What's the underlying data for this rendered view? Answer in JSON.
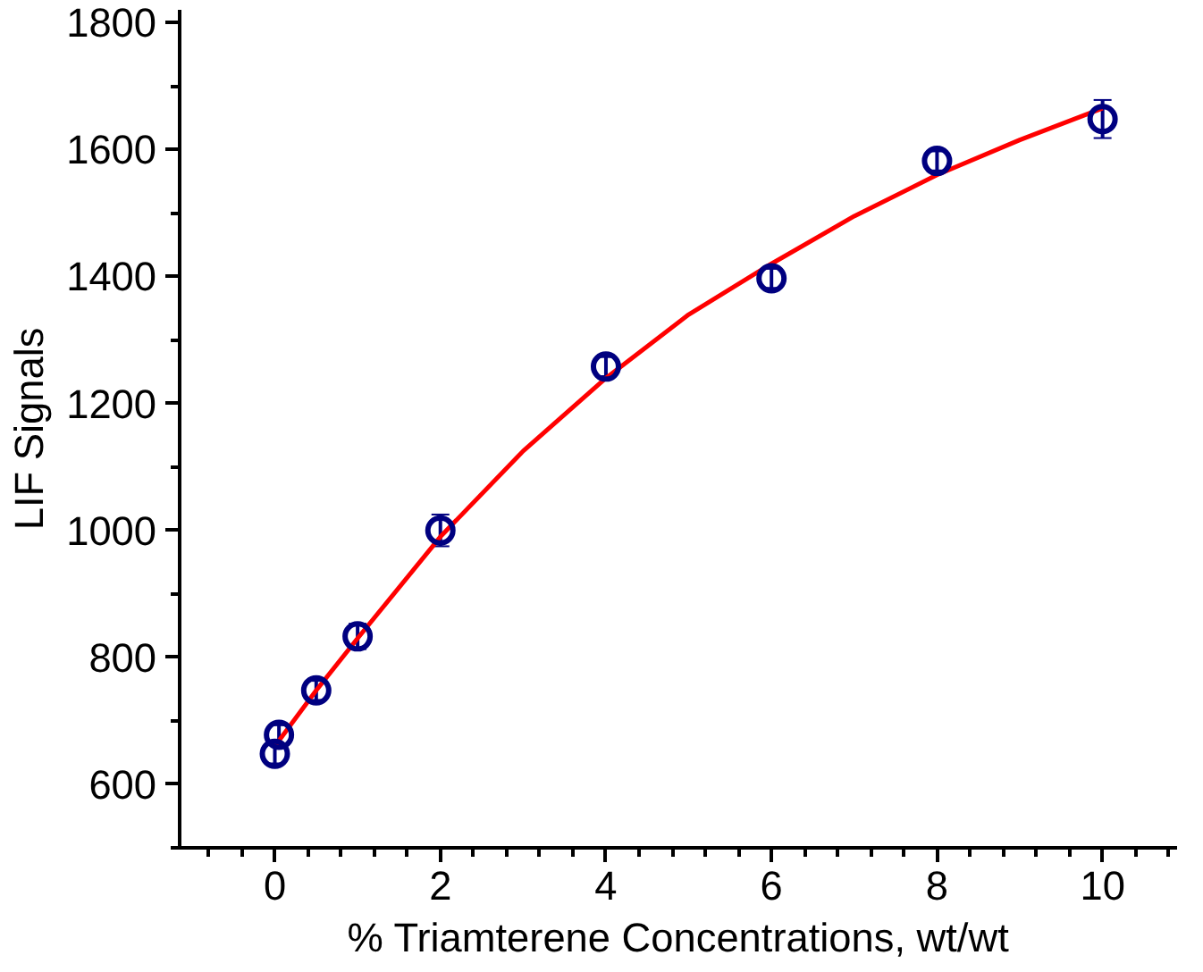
{
  "chart_data": {
    "type": "scatter",
    "xlabel": "% Triamterene Concentrations, wt/wt",
    "ylabel": "LIF Signals",
    "xlim": [
      -1.15,
      10.9
    ],
    "ylim": [
      500,
      1820
    ],
    "xticks": [
      {
        "value": -0.8,
        "label": null
      },
      {
        "value": -0.4,
        "label": null
      },
      0,
      {
        "value": 0.4,
        "label": null
      },
      {
        "value": 0.8,
        "label": null
      },
      {
        "value": 1.2,
        "label": null
      },
      {
        "value": 1.6,
        "label": null
      },
      2,
      {
        "value": 2.4,
        "label": null
      },
      {
        "value": 2.8,
        "label": null
      },
      {
        "value": 3.2,
        "label": null
      },
      {
        "value": 3.6,
        "label": null
      },
      4,
      {
        "value": 4.4,
        "label": null
      },
      {
        "value": 4.8,
        "label": null
      },
      {
        "value": 5.2,
        "label": null
      },
      {
        "value": 5.6,
        "label": null
      },
      6,
      {
        "value": 6.4,
        "label": null
      },
      {
        "value": 6.8,
        "label": null
      },
      {
        "value": 7.2,
        "label": null
      },
      {
        "value": 7.6,
        "label": null
      },
      8,
      {
        "value": 8.4,
        "label": null
      },
      {
        "value": 8.8,
        "label": null
      },
      {
        "value": 9.2,
        "label": null
      },
      {
        "value": 9.6,
        "label": null
      },
      10,
      {
        "value": 10.4,
        "label": null
      },
      {
        "value": 10.8,
        "label": null
      }
    ],
    "yticks": [
      {
        "value": 500,
        "label": null
      },
      600,
      {
        "value": 700,
        "label": null
      },
      800,
      {
        "value": 900,
        "label": null
      },
      1000,
      {
        "value": 1100,
        "label": null
      },
      1200,
      {
        "value": 1300,
        "label": null
      },
      1400,
      {
        "value": 1500,
        "label": null
      },
      1600,
      {
        "value": 1700,
        "label": null
      },
      1800
    ],
    "grid": false,
    "marker": "circle",
    "series": [
      {
        "color": "#000080",
        "x": [
          0,
          0.05,
          0.5,
          1,
          2,
          4,
          6,
          8,
          10
        ],
        "values": [
          648,
          678,
          748,
          833,
          1000,
          1258,
          1397,
          1582,
          1648
        ],
        "errors": [
          15,
          15,
          15,
          20,
          25,
          15,
          15,
          15,
          30
        ]
      },
      {
        "type": "line",
        "color": "#ff0000",
        "marker": "none",
        "x": [
          0,
          0.5,
          1,
          2,
          3,
          4,
          5,
          6,
          7,
          8,
          9,
          10
        ],
        "values": [
          660,
          748,
          830,
          990,
          1125,
          1240,
          1340,
          1420,
          1495,
          1560,
          1615,
          1665
        ]
      }
    ]
  }
}
